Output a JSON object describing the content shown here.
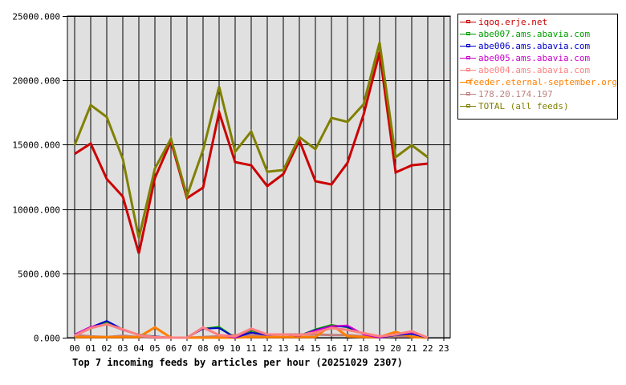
{
  "chart_data": {
    "type": "line",
    "title": "Top 7 incoming feeds by articles per hour (20251029 2307)",
    "xlabel": "",
    "ylabel": "",
    "ylim": [
      0,
      25000
    ],
    "y_ticks": [
      "0.000",
      "5000.000",
      "10000.000",
      "15000.000",
      "20000.000",
      "25000.000"
    ],
    "y_tick_values": [
      0,
      5000,
      10000,
      15000,
      20000,
      25000
    ],
    "categories": [
      "00",
      "01",
      "02",
      "03",
      "04",
      "05",
      "06",
      "07",
      "08",
      "09",
      "10",
      "11",
      "12",
      "13",
      "14",
      "15",
      "16",
      "17",
      "18",
      "19",
      "20",
      "21",
      "22",
      "23"
    ],
    "grid": true,
    "legend_position": "right",
    "series": [
      {
        "name": "iqoq.erje.net",
        "color": "#cc0000",
        "width": 3,
        "values": [
          14280,
          15090,
          12340,
          10970,
          6550,
          12410,
          15270,
          10850,
          11660,
          17520,
          13650,
          13400,
          11780,
          12720,
          15340,
          12160,
          11910,
          13590,
          17330,
          22190,
          12840,
          13400,
          13530
        ]
      },
      {
        "name": "abe007.ams.abavia.com",
        "color": "#00a000",
        "width": 2,
        "values": [
          200,
          700,
          1200,
          600,
          250,
          100,
          0,
          0,
          700,
          850,
          0,
          550,
          200,
          250,
          150,
          650,
          1000,
          800,
          300,
          0,
          200,
          300,
          0
        ]
      },
      {
        "name": "abe006.ams.abavia.com",
        "color": "#0000cc",
        "width": 2,
        "values": [
          200,
          800,
          1300,
          650,
          200,
          100,
          0,
          0,
          700,
          750,
          0,
          400,
          200,
          250,
          150,
          600,
          900,
          850,
          300,
          0,
          200,
          300,
          0
        ]
      },
      {
        "name": "abe005.ams.abavia.com",
        "color": "#cc00cc",
        "width": 2,
        "values": [
          250,
          850,
          1050,
          600,
          200,
          50,
          0,
          0,
          750,
          200,
          0,
          650,
          200,
          250,
          150,
          550,
          900,
          950,
          250,
          0,
          250,
          400,
          0
        ]
      },
      {
        "name": "abe004.ams.abavia.com",
        "color": "#ff8080",
        "width": 3,
        "values": [
          150,
          750,
          1050,
          650,
          200,
          50,
          0,
          0,
          800,
          200,
          100,
          700,
          250,
          250,
          200,
          400,
          750,
          600,
          350,
          100,
          250,
          500,
          0
        ]
      },
      {
        "name": "feeder.eternal-september.org",
        "color": "#ff8000",
        "width": 3,
        "values": [
          50,
          50,
          50,
          50,
          50,
          800,
          0,
          0,
          0,
          0,
          0,
          50,
          50,
          50,
          50,
          50,
          1000,
          100,
          50,
          50,
          450,
          50,
          0
        ]
      },
      {
        "name": "178.20.174.197",
        "color": "#c08080",
        "width": 3,
        "values": [
          200,
          100,
          50,
          150,
          50,
          0,
          0,
          0,
          50,
          100,
          200,
          200,
          200,
          250,
          250,
          250,
          200,
          200,
          100,
          50,
          100,
          100,
          0
        ]
      },
      {
        "name": "TOTAL (all feeds)",
        "color": "#808000",
        "width": 3,
        "values": [
          14960,
          18080,
          17150,
          13900,
          7730,
          13150,
          15460,
          11030,
          14590,
          19510,
          14460,
          16020,
          12900,
          13030,
          15590,
          14650,
          17080,
          16770,
          18140,
          22940,
          14030,
          14960,
          14030
        ]
      }
    ]
  },
  "legend": {
    "items": [
      {
        "label": "iqoq.erje.net",
        "color": "#cc0000"
      },
      {
        "label": "abe007.ams.abavia.com",
        "color": "#00a000"
      },
      {
        "label": "abe006.ams.abavia.com",
        "color": "#0000cc"
      },
      {
        "label": "abe005.ams.abavia.com",
        "color": "#cc00cc"
      },
      {
        "label": "abe004.ams.abavia.com",
        "color": "#ff8080"
      },
      {
        "label": "feeder.eternal-september.org",
        "color": "#ff8000"
      },
      {
        "label": "178.20.174.197",
        "color": "#c08080"
      },
      {
        "label": "TOTAL (all feeds)",
        "color": "#808000"
      }
    ]
  },
  "colors": {
    "plot_background": "#e0e0e0",
    "grid": "#000000"
  }
}
